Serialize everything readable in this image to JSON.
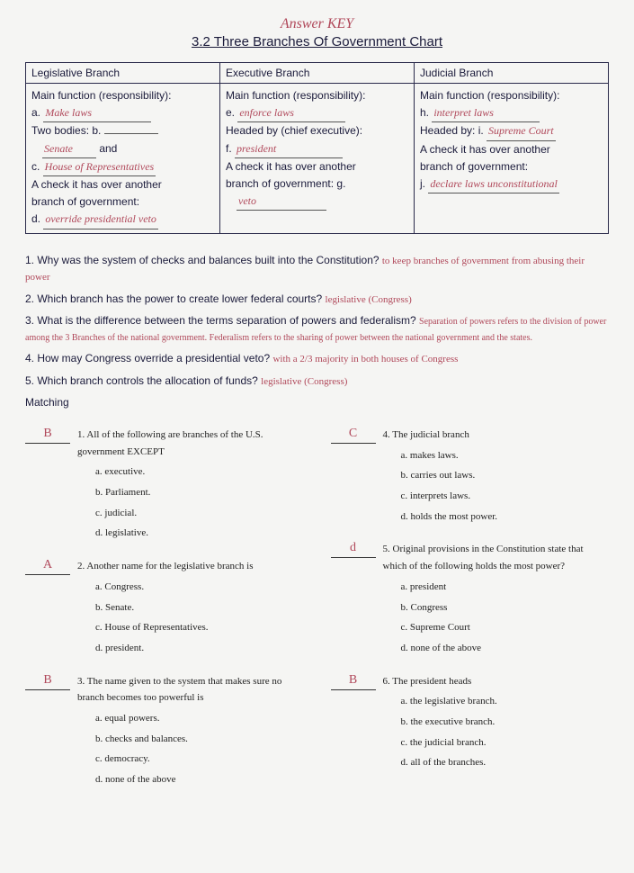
{
  "header_note": "Answer KEY",
  "title": "3.2 Three Branches Of Government Chart",
  "columns": [
    {
      "header": "Legislative Branch",
      "lines": [
        {
          "t": "text",
          "v": "Main function (responsibility):"
        },
        {
          "t": "lettered",
          "letter": "a.",
          "answer": "Make laws"
        },
        {
          "t": "mixed",
          "pre": "Two bodies: b.",
          "answer": ""
        },
        {
          "t": "fill_then_text",
          "answer": "Senate",
          "post": "and"
        },
        {
          "t": "lettered",
          "letter": "c.",
          "answer": "House of Representatives"
        },
        {
          "t": "text",
          "v": "A check it has over another"
        },
        {
          "t": "text",
          "v": "branch of government:"
        },
        {
          "t": "lettered",
          "letter": "d.",
          "answer": "override presidential veto"
        }
      ]
    },
    {
      "header": "Executive Branch",
      "lines": [
        {
          "t": "text",
          "v": "Main function (responsibility):"
        },
        {
          "t": "lettered",
          "letter": "e.",
          "answer": "enforce laws"
        },
        {
          "t": "text",
          "v": "Headed by (chief executive):"
        },
        {
          "t": "lettered",
          "letter": "f.",
          "answer": "president"
        },
        {
          "t": "text",
          "v": "A check it has over another"
        },
        {
          "t": "text",
          "v": "branch of government: g."
        },
        {
          "t": "fill_only",
          "answer": "veto"
        }
      ]
    },
    {
      "header": "Judicial Branch",
      "lines": [
        {
          "t": "text",
          "v": "Main function (responsibility):"
        },
        {
          "t": "lettered",
          "letter": "h.",
          "answer": "interpret laws"
        },
        {
          "t": "mixed",
          "pre": "Headed by: i.",
          "answer": "Supreme Court"
        },
        {
          "t": "text",
          "v": "A check it has over another"
        },
        {
          "t": "text",
          "v": "branch of government:"
        },
        {
          "t": "lettered",
          "letter": "j.",
          "answer": "declare laws unconstitutional"
        }
      ]
    }
  ],
  "questions": [
    {
      "num": "1.",
      "q": "Why was the system of checks and balances built into the Constitution?",
      "a": "to keep branches of government from abusing their power"
    },
    {
      "num": "2.",
      "q": "Which branch has the power to create lower federal courts?",
      "a": "legislative (Congress)"
    },
    {
      "num": "3.",
      "q": "What is the difference between the terms separation of powers and federalism?",
      "a": "Separation of powers refers to the division of power among the 3 Branches of the national government. Federalism refers to the sharing of power between the national government and the states."
    },
    {
      "num": "4.",
      "q": "How may Congress override a presidential veto?",
      "a": "with a 2/3 majority in both houses of Congress"
    },
    {
      "num": "5.",
      "q": "Which branch controls the allocation of funds?",
      "a": "legislative (Congress)"
    }
  ],
  "matching_label": "Matching",
  "matching_left": [
    {
      "ans": "B",
      "num": "1.",
      "stem": "All of the following are branches of the U.S. government EXCEPT",
      "opts": [
        "a.  executive.",
        "b.  Parliament.",
        "c.  judicial.",
        "d.  legislative."
      ]
    },
    {
      "ans": "A",
      "num": "2.",
      "stem": "Another name for the legislative branch is",
      "opts": [
        "a.  Congress.",
        "b.  Senate.",
        "c.  House of Representatives.",
        "d.  president."
      ]
    },
    {
      "ans": "B",
      "num": "3.",
      "stem": "The name given to the system that makes sure no branch becomes too powerful is",
      "opts": [
        "a.  equal powers.",
        "b.  checks and balances.",
        "c.  democracy.",
        "d.  none of the above"
      ]
    }
  ],
  "matching_right": [
    {
      "ans": "C",
      "num": "4.",
      "stem": "The judicial branch",
      "opts": [
        "a.  makes laws.",
        "b.  carries out laws.",
        "c.  interprets laws.",
        "d.  holds the most power."
      ]
    },
    {
      "ans": "d",
      "num": "5.",
      "stem": "Original provisions in the Constitution state that which of the following holds the most power?",
      "opts": [
        "a.  president",
        "b.  Congress",
        "c.  Supreme Court",
        "d.  none of the above"
      ]
    },
    {
      "ans": "B",
      "num": "6.",
      "stem": "The president heads",
      "opts": [
        "a.  the legislative branch.",
        "b.  the executive branch.",
        "c.  the judicial branch.",
        "d.  all of the branches."
      ]
    }
  ]
}
